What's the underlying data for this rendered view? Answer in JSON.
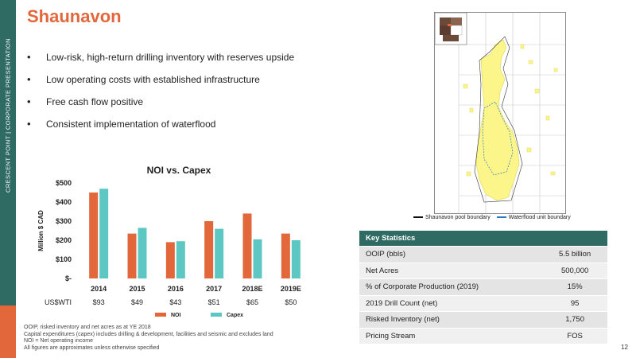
{
  "sidebar": {
    "text": "CRESCENT POINT  |  CORPORATE PRESENTATION"
  },
  "title": "Shaunavon",
  "bullets": [
    "Low-risk, high-return drilling inventory with reserves upside",
    "Low operating costs with established infrastructure",
    "Free cash flow positive",
    "Consistent implementation of waterflood"
  ],
  "colors": {
    "noi": "#e2683c",
    "capex": "#5dc8c3",
    "brand": "#2f6a63"
  },
  "chart_data": {
    "type": "bar",
    "title": "NOI vs. Capex",
    "ylabel": "Million $ CAD",
    "ylim": [
      0,
      500
    ],
    "yticks": [
      "$-",
      "$100",
      "$200",
      "$300",
      "$400",
      "$500"
    ],
    "categories": [
      "2014",
      "2015",
      "2016",
      "2017",
      "2018E",
      "2019E"
    ],
    "series": [
      {
        "name": "NOI",
        "values": [
          450,
          235,
          190,
          300,
          340,
          235
        ]
      },
      {
        "name": "Capex",
        "values": [
          470,
          265,
          195,
          260,
          205,
          200
        ]
      }
    ],
    "secondary_row_label": "US$WTI",
    "secondary_row": [
      "$93",
      "$49",
      "$43",
      "$51",
      "$65",
      "$50"
    ],
    "legend_position": "bottom"
  },
  "footnotes": [
    "OOIP, risked inventory and net acres as at YE 2018",
    "Capital expenditures (capex) includes drilling & development, facilities and seismic and excludes land",
    "NOI = Net operating income",
    "All figures are approximates unless otherwise specified"
  ],
  "map_legend": {
    "pool": "Shaunavon pool boundary",
    "waterflood": "Waterflood unit boundary"
  },
  "stats": {
    "header": "Key Statistics",
    "rows": [
      {
        "label": "OOIP (bbls)",
        "value": "5.5 billion"
      },
      {
        "label": "Net Acres",
        "value": "500,000"
      },
      {
        "label": "% of Corporate Production (2019)",
        "value": "15%"
      },
      {
        "label": "2019 Drill Count (net)",
        "value": "95"
      },
      {
        "label": "Risked Inventory (net)",
        "value": "1,750"
      },
      {
        "label": "Pricing Stream",
        "value": "FOS"
      }
    ]
  },
  "page_number": "12"
}
